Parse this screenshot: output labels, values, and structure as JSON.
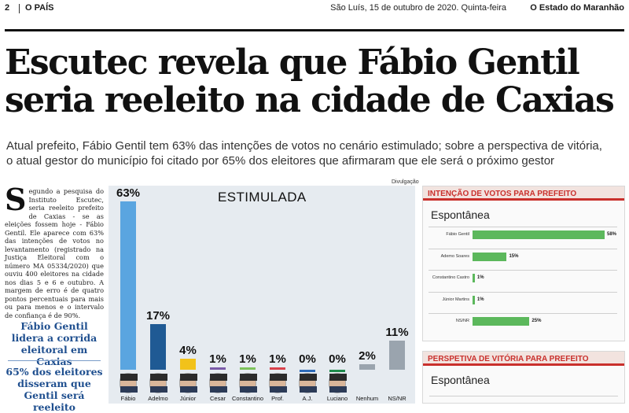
{
  "header": {
    "page_number": "2",
    "section": "O PAÍS",
    "date": "São Luís, 15 de outubro de 2020. Quinta-feira",
    "newspaper": "O Estado do Maranhão"
  },
  "headline": {
    "line1": "Escutec revela que Fábio Gentil",
    "line2": "seria reeleito na cidade de Caxias"
  },
  "deck": {
    "line1": "Atual prefeito, Fábio Gentil tem 63% das intenções de votos no cenário estimulado; sobre a perspectiva de vitória,",
    "line2": "o atual gestor do município foi citado por 65% dos eleitores que afirmaram que ele será o próximo gestor"
  },
  "article": {
    "dropcap": "S",
    "text": "egundo a pesquisa do Instituto Escutec, seria reeleito prefeito de Caxias - se as eleições fossem hoje - Fábio Gentil. Ele aparece com 63% das intenções de votos no levantamento (registrado na Justiça Eleitoral com o número MA 05334/2020) que ouviu 400 eleitores na cidade nos dias 5 e 6 e outubro. A margem de erro é de quatro pontos percentuais para mais ou para menos e o intervalo de confiança é de 90%."
  },
  "pull_quotes": {
    "first": "Fábio Gentil lidera a corrida eleitoral em Caxias",
    "second": "65% dos eleitores disseram que Gentil será reeleito"
  },
  "main_chart": {
    "credit": "Divulgação",
    "title": "ESTIMULADA"
  },
  "chart_data": [
    {
      "type": "bar",
      "title": "ESTIMULADA",
      "categories": [
        "Fábio",
        "Adelmo",
        "Júnior",
        "Cesar",
        "Constantino",
        "Prof.",
        "A.J.",
        "Luciano",
        "Nenhum",
        "NS/NR"
      ],
      "values": [
        63,
        17,
        4,
        1,
        1,
        1,
        0,
        0,
        2,
        11
      ],
      "value_labels": [
        "63%",
        "17%",
        "4%",
        "1%",
        "1%",
        "1%",
        "0%",
        "0%",
        "2%",
        "11%"
      ],
      "colors": [
        "#5aa5e0",
        "#1f5a94",
        "#f2c21a",
        "#7a5aa8",
        "#7cc25a",
        "#d9414b",
        "#2e6bb8",
        "#1f8a4c",
        "#9aa4ae",
        "#9aa4ae"
      ],
      "ylim": [
        0,
        63
      ]
    },
    {
      "type": "bar",
      "orientation": "horizontal",
      "title": "INTENÇÃO DE VOTOS PARA PREFEITO",
      "subtitle": "Espontânea",
      "categories": [
        "Fábio Gentil",
        "Ademo Soares",
        "Constantino Castro",
        "Júnior Martins",
        "NS/NR"
      ],
      "values": [
        58,
        15,
        1,
        1,
        25
      ],
      "value_labels": [
        "58%",
        "15%",
        "1%",
        "1%",
        "25%"
      ],
      "xlim": [
        0,
        58
      ]
    },
    {
      "type": "bar",
      "title": "PERSPETIVA DE VITÓRIA PARA PREFEITO",
      "subtitle": "Espontânea"
    }
  ],
  "colors": {
    "panel_accent": "#c9302c",
    "hbar": "#5cb85c",
    "pull_quote": "#1f4f8f",
    "chart_background": "#e6ebf0"
  }
}
